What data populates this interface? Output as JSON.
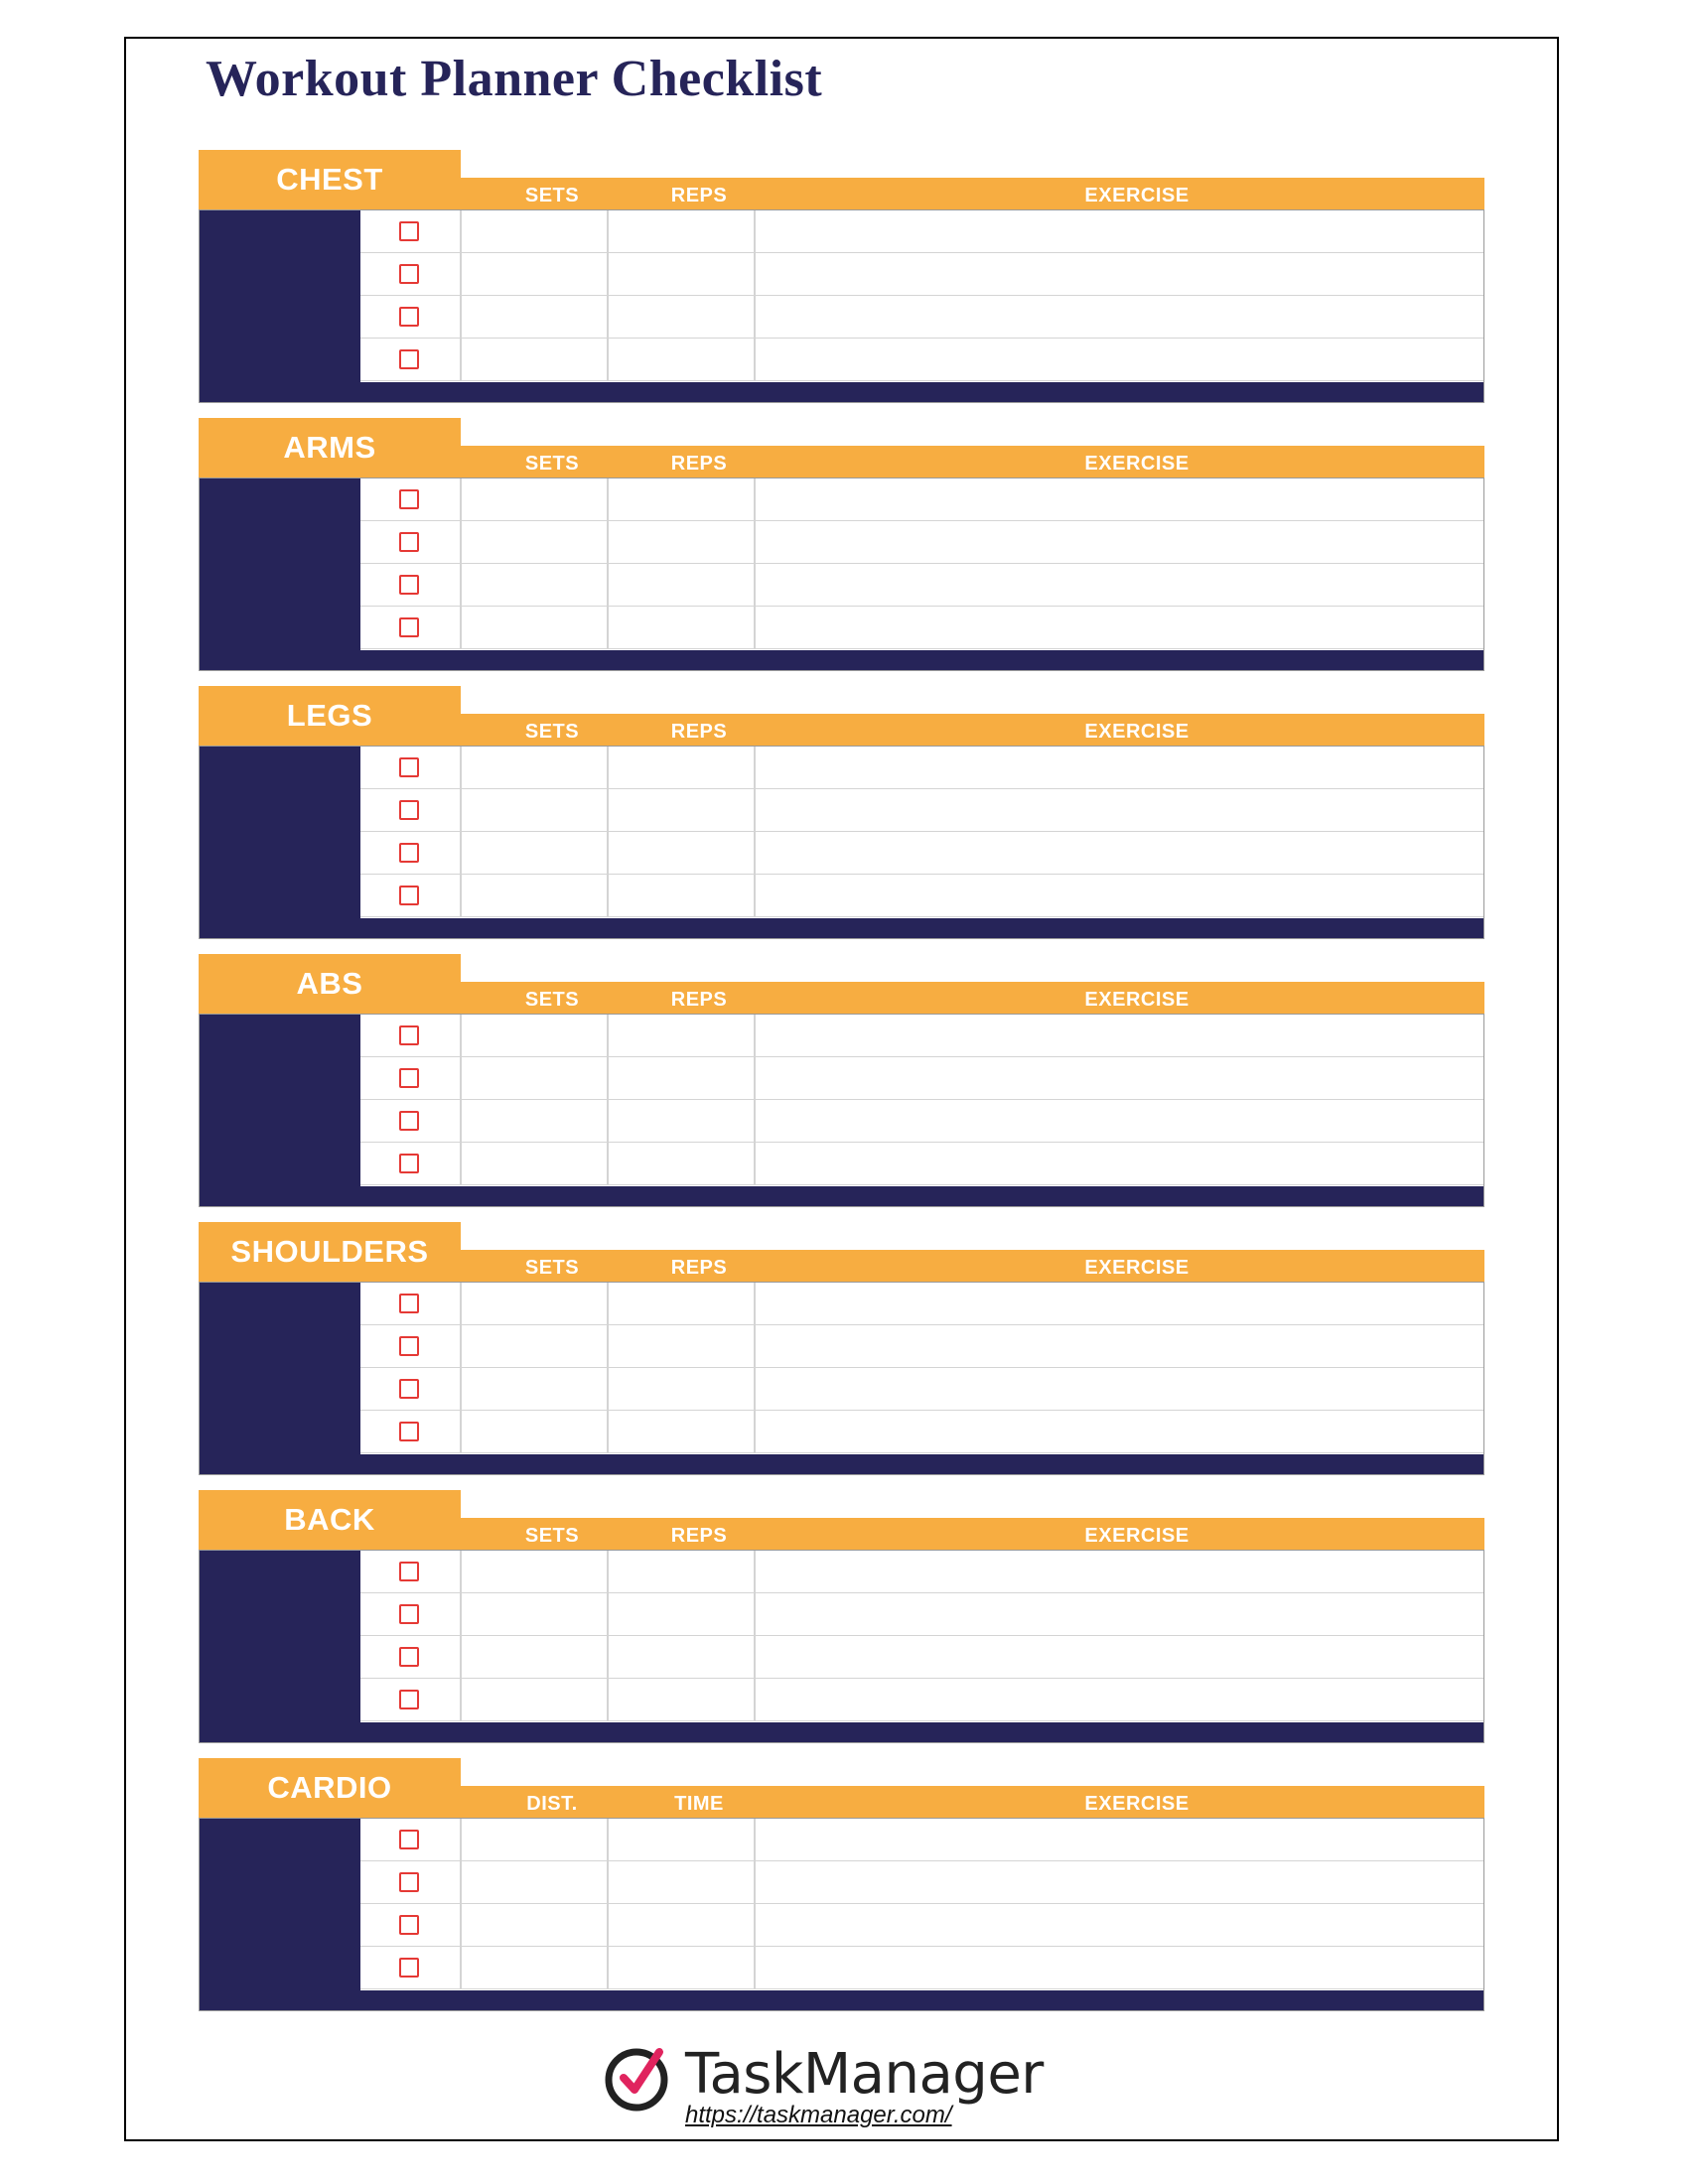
{
  "title": "Workout Planner Checklist",
  "colors": {
    "navy": "#262459",
    "orange": "#f7ad41",
    "checkbox": "#e53935"
  },
  "sections": [
    {
      "name": "CHEST",
      "columns": [
        "SETS",
        "REPS",
        "EXERCISE"
      ]
    },
    {
      "name": "ARMS",
      "columns": [
        "SETS",
        "REPS",
        "EXERCISE"
      ]
    },
    {
      "name": "LEGS",
      "columns": [
        "SETS",
        "REPS",
        "EXERCISE"
      ]
    },
    {
      "name": "ABS",
      "columns": [
        "SETS",
        "REPS",
        "EXERCISE"
      ]
    },
    {
      "name": "SHOULDERS",
      "columns": [
        "SETS",
        "REPS",
        "EXERCISE"
      ]
    },
    {
      "name": "BACK",
      "columns": [
        "SETS",
        "REPS",
        "EXERCISE"
      ]
    },
    {
      "name": "CARDIO",
      "columns": [
        "DIST.",
        "TIME",
        "EXERCISE"
      ]
    }
  ],
  "rows_per_section": 4,
  "footer": {
    "logo_text": "TaskManager",
    "logo_icon": "check-circle-icon",
    "url": "https://taskmanager.com/"
  }
}
